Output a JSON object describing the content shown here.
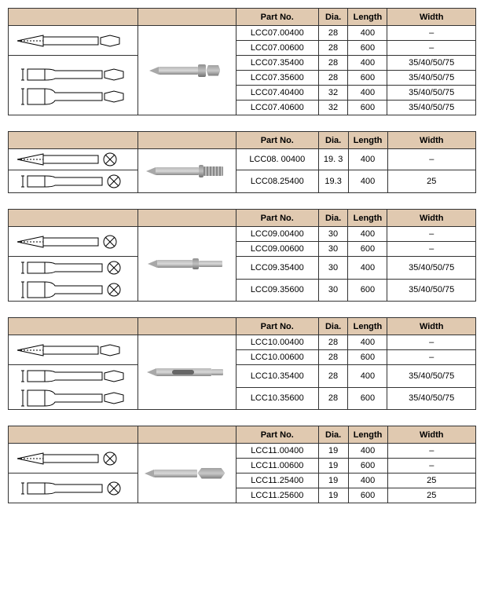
{
  "headers": {
    "part": "Part No.",
    "dia": "Dia.",
    "len": "Length",
    "wid": "Width"
  },
  "tables": [
    {
      "rows": [
        {
          "part": "LCC07.00400",
          "dia": "28",
          "len": "400",
          "wid": "–"
        },
        {
          "part": "LCC07.00600",
          "dia": "28",
          "len": "600",
          "wid": "–"
        },
        {
          "part": "LCC07.35400",
          "dia": "28",
          "len": "400",
          "wid": "35/40/50/75"
        },
        {
          "part": "LCC07.35600",
          "dia": "28",
          "len": "600",
          "wid": "35/40/50/75"
        },
        {
          "part": "LCC07.40400",
          "dia": "32",
          "len": "400",
          "wid": "35/40/50/75"
        },
        {
          "part": "LCC07.40600",
          "dia": "32",
          "len": "600",
          "wid": "35/40/50/75"
        }
      ],
      "draw_split": 2,
      "dim1": "35",
      "dim2": "75",
      "shapes": [
        "point",
        "hex",
        "chisel-narrow",
        "chisel-wide"
      ],
      "photo": "hex-collar"
    },
    {
      "rows": [
        {
          "part": "LCC08. 00400",
          "dia": "19. 3",
          "len": "400",
          "wid": "–"
        },
        {
          "part": "LCC08.25400",
          "dia": "19.3",
          "len": "400",
          "wid": "25"
        }
      ],
      "draw_split": 1,
      "dim1": "25",
      "shapes": [
        "point-round",
        "chisel-round"
      ],
      "photo": "spline"
    },
    {
      "rows": [
        {
          "part": "LCC09.00400",
          "dia": "30",
          "len": "400",
          "wid": "–"
        },
        {
          "part": "LCC09.00600",
          "dia": "30",
          "len": "600",
          "wid": "–"
        },
        {
          "part": "LCC09.35400",
          "dia": "30",
          "len": "400",
          "wid": "35/40/50/75"
        },
        {
          "part": "LCC09.35600",
          "dia": "30",
          "len": "600",
          "wid": "35/40/50/75"
        }
      ],
      "draw_split": 2,
      "dim1": "35",
      "dim2": "75",
      "shapes": [
        "point-round",
        "chisel-round-narrow",
        "chisel-round-wide"
      ],
      "photo": "round-shoulder"
    },
    {
      "rows": [
        {
          "part": "LCC10.00400",
          "dia": "28",
          "len": "400",
          "wid": "–"
        },
        {
          "part": "LCC10.00600",
          "dia": "28",
          "len": "600",
          "wid": "–"
        },
        {
          "part": "LCC10.35400",
          "dia": "28",
          "len": "400",
          "wid": "35/40/50/75"
        },
        {
          "part": "LCC10.35600",
          "dia": "28",
          "len": "600",
          "wid": "35/40/50/75"
        }
      ],
      "draw_split": 2,
      "dim1": "35",
      "dim2": "75",
      "shapes": [
        "point-hex",
        "chisel-hex-narrow",
        "chisel-hex-wide"
      ],
      "photo": "slot"
    },
    {
      "rows": [
        {
          "part": "LCC11.00400",
          "dia": "19",
          "len": "400",
          "wid": "–"
        },
        {
          "part": "LCC11.00600",
          "dia": "19",
          "len": "600",
          "wid": "–"
        },
        {
          "part": "LCC11.25400",
          "dia": "19",
          "len": "400",
          "wid": "25"
        },
        {
          "part": "LCC11.25600",
          "dia": "19",
          "len": "600",
          "wid": "25"
        }
      ],
      "draw_split": 2,
      "dim1": "25",
      "shapes": [
        "point-round",
        "chisel-round"
      ],
      "photo": "hex-plain"
    }
  ],
  "colors": {
    "header_bg": "#e0c9b0",
    "border": "#333333",
    "metal_light": "#d8d8d8",
    "metal_dark": "#888888"
  }
}
